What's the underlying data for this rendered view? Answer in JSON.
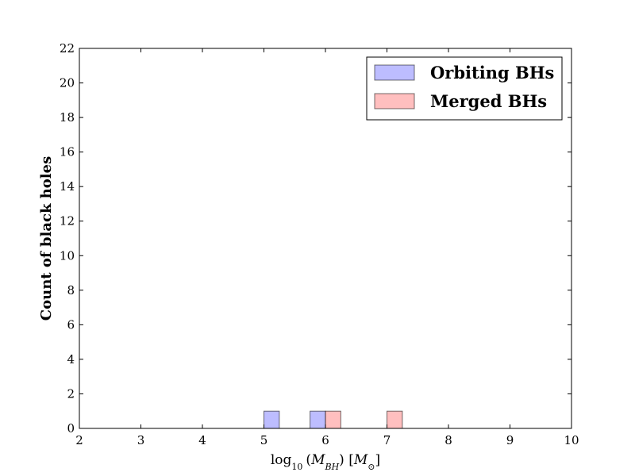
{
  "chart_data": {
    "type": "bar",
    "xlabel_parts": {
      "func": "log",
      "func_sub": "10",
      "sym": "M",
      "sym_sub": "BH",
      "unit": "M",
      "unit_sub": "⊙"
    },
    "ylabel": "Count of black holes",
    "xlim": [
      2,
      10
    ],
    "ylim": [
      0,
      22
    ],
    "xticks": [
      2,
      3,
      4,
      5,
      6,
      7,
      8,
      9,
      10
    ],
    "yticks": [
      0,
      2,
      4,
      6,
      8,
      10,
      12,
      14,
      16,
      18,
      20,
      22
    ],
    "bin_width": 0.25,
    "legend_position": "top-right",
    "series": [
      {
        "name": "Orbiting BHs",
        "color": "#7b7bff",
        "bins": [
          {
            "x0": 5.0,
            "x1": 5.25,
            "count": 1
          },
          {
            "x0": 5.75,
            "x1": 6.0,
            "count": 1
          }
        ]
      },
      {
        "name": "Merged BHs",
        "color": "#ff7f7f",
        "bins": [
          {
            "x0": 6.0,
            "x1": 6.25,
            "count": 1
          },
          {
            "x0": 7.0,
            "x1": 7.25,
            "count": 1
          }
        ]
      }
    ],
    "overlap_color": "#c0407a"
  }
}
